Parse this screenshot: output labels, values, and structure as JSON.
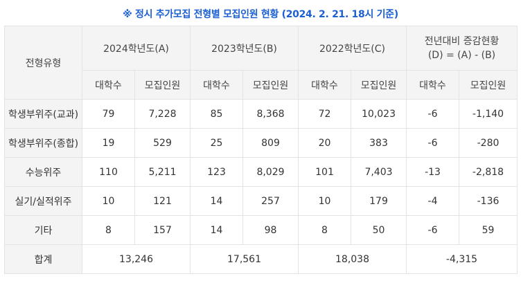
{
  "title": "※ 정시 추가모집 전형별 모집인원 현황 (2024. 2. 21. 18시 기준)",
  "header": {
    "type_label": "전형유형",
    "years": [
      "2024학년도(A)",
      "2023학년도(B)",
      "2022학년도(C)"
    ],
    "diff_line1": "전년대비 증감현황",
    "diff_line2": "(D) = (A) - (B)",
    "sub_univ": "대학수",
    "sub_recruit": "모집인원"
  },
  "rows": [
    {
      "label": "학생부위주(교과)",
      "cells": [
        "79",
        "7,228",
        "85",
        "8,368",
        "72",
        "10,023",
        "-6",
        "-1,140"
      ]
    },
    {
      "label": "학생부위주(종합)",
      "cells": [
        "19",
        "529",
        "25",
        "809",
        "20",
        "383",
        "-6",
        "-280"
      ]
    },
    {
      "label": "수능위주",
      "cells": [
        "110",
        "5,211",
        "123",
        "8,029",
        "101",
        "7,403",
        "-13",
        "-2,818"
      ]
    },
    {
      "label": "실기/실적위주",
      "cells": [
        "10",
        "121",
        "14",
        "257",
        "10",
        "179",
        "-4",
        "-136"
      ]
    },
    {
      "label": "기타",
      "cells": [
        "8",
        "157",
        "14",
        "98",
        "8",
        "50",
        "-6",
        "59"
      ]
    }
  ],
  "total": {
    "label": "합계",
    "values": [
      "13,246",
      "17,561",
      "18,038",
      "-4,315"
    ]
  }
}
